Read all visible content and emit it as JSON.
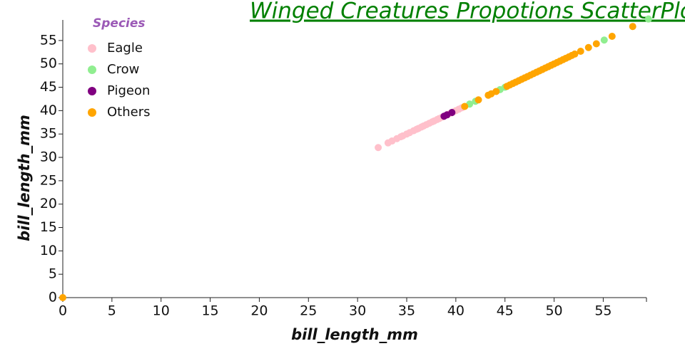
{
  "chart_data": {
    "type": "scatter",
    "title": "Winged Creatures Propotions ScatterPlot",
    "x_label": "bill_length_mm",
    "y_label": "bill_length_mm",
    "legend_title": "Species",
    "xlim": [
      0,
      59.4
    ],
    "ylim": [
      0,
      59.4
    ],
    "xticks": [
      0,
      5,
      10,
      15,
      20,
      25,
      30,
      35,
      40,
      45,
      50,
      55
    ],
    "yticks": [
      0,
      5,
      10,
      15,
      20,
      25,
      30,
      35,
      40,
      45,
      50,
      55
    ],
    "legend_position": "upper left",
    "series": [
      {
        "name": "Eagle",
        "color": "#ffc0cb",
        "x": [
          32.1,
          33.1,
          33.5,
          34,
          34.4,
          34.6,
          35,
          35.3,
          35.7,
          36,
          36.2,
          36.5,
          36.7,
          37,
          37.3,
          37.6,
          37.8,
          38.1,
          38.3,
          38.6,
          38.9,
          39.2,
          39.5,
          39.7,
          40,
          40.3,
          40.6
        ],
        "values": [
          32.1,
          33.1,
          33.5,
          34,
          34.4,
          34.6,
          35,
          35.3,
          35.7,
          36,
          36.2,
          36.5,
          36.7,
          37,
          37.3,
          37.6,
          37.8,
          38.1,
          38.3,
          38.6,
          38.9,
          39.2,
          39.5,
          39.7,
          40,
          40.3,
          40.6
        ]
      },
      {
        "name": "Crow",
        "color": "#90ee90",
        "x": [
          41.4,
          42,
          44.5,
          45,
          55.1,
          59.6
        ],
        "values": [
          41.4,
          42,
          44.5,
          45,
          55.1,
          59.6
        ]
      },
      {
        "name": "Pigeon",
        "color": "#800080",
        "x": [
          38.8,
          39.1,
          39.6
        ],
        "values": [
          38.8,
          39.1,
          39.6
        ]
      },
      {
        "name": "Others",
        "color": "#ffa500",
        "x": [
          0,
          40.9,
          42.3,
          43.3,
          43.6,
          44.1,
          45.2,
          45.5,
          45.8,
          46.1,
          46.4,
          46.7,
          47,
          47.3,
          47.6,
          47.9,
          48.2,
          48.5,
          48.8,
          49.1,
          49.4,
          49.7,
          50,
          50.3,
          50.6,
          50.9,
          51.2,
          51.5,
          51.8,
          52.1,
          52.7,
          53.5,
          54.3,
          55.9,
          58
        ],
        "values": [
          0,
          40.9,
          42.3,
          43.3,
          43.6,
          44.1,
          45.2,
          45.5,
          45.8,
          46.1,
          46.4,
          46.7,
          47,
          47.3,
          47.6,
          47.9,
          48.2,
          48.5,
          48.8,
          49.1,
          49.4,
          49.7,
          50,
          50.3,
          50.6,
          50.9,
          51.2,
          51.5,
          51.8,
          52.1,
          52.7,
          53.5,
          54.3,
          55.9,
          58
        ]
      }
    ]
  }
}
